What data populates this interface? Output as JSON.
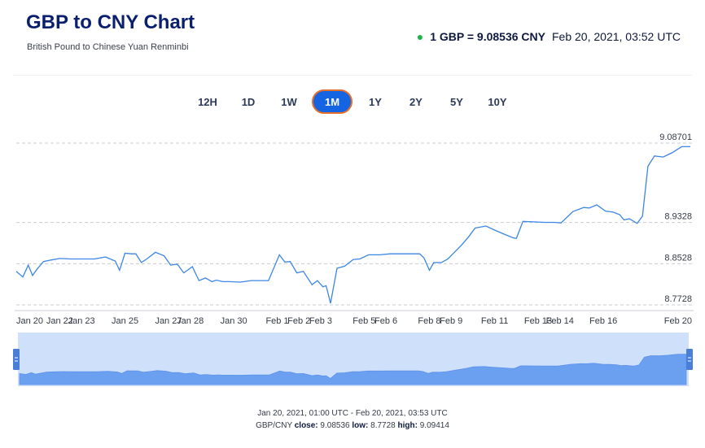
{
  "header": {
    "title": "GBP to CNY Chart",
    "subtitle": "British Pound to Chinese Yuan Renminbi",
    "rate_text": "1 GBP = 9.08536 CNY",
    "timestamp": "Feb 20, 2021, 03:52 UTC"
  },
  "ranges": [
    {
      "label": "12H",
      "active": false
    },
    {
      "label": "1D",
      "active": false
    },
    {
      "label": "1W",
      "active": false
    },
    {
      "label": "1M",
      "active": true
    },
    {
      "label": "1Y",
      "active": false
    },
    {
      "label": "2Y",
      "active": false
    },
    {
      "label": "5Y",
      "active": false
    },
    {
      "label": "10Y",
      "active": false
    }
  ],
  "colors": {
    "line": "#3b86e6",
    "navigator_fill": "#6b9ff0",
    "navigator_bg": "#cfe0fb",
    "active_range": "#1565e3",
    "active_border": "#e6702a",
    "live_dot": "#1fb34a"
  },
  "chart_data": {
    "type": "line",
    "y_ticks": [
      "9.08701",
      "8.9328",
      "8.8528",
      "8.7728"
    ],
    "y_tick_values": [
      9.08701,
      8.9328,
      8.8528,
      8.7728
    ],
    "ylim": [
      8.7728,
      9.08701
    ],
    "x_tick_labels": [
      "Jan 20",
      "Jan 22",
      "Jan 23",
      "Jan 25",
      "Jan 27",
      "Jan 28",
      "Jan 30",
      "Feb 1",
      "Feb 2",
      "Feb 3",
      "Feb 5",
      "Feb 6",
      "Feb 8",
      "Feb 9",
      "Feb 11",
      "Feb 13",
      "Feb 14",
      "Feb 16",
      "Feb 20"
    ],
    "x_tick_days": [
      0,
      2,
      3,
      5,
      7,
      8,
      10,
      12,
      13,
      14,
      16,
      17,
      19,
      20,
      22,
      24,
      25,
      27,
      31
    ],
    "series": [
      {
        "x": [
          0,
          0.3,
          0.55,
          0.75,
          0.95,
          1.25,
          1.6,
          2.0,
          2.5,
          3.0,
          3.6,
          4.1,
          4.55,
          4.75,
          5.0,
          5.3,
          5.5,
          5.75,
          6.0,
          6.4,
          6.8,
          7.1,
          7.4,
          7.7,
          8.1,
          8.4,
          8.7,
          9.0,
          9.2,
          9.5,
          9.8,
          10.3,
          10.8,
          11.2,
          11.6,
          12.1,
          12.35,
          12.6,
          12.9,
          13.2,
          13.6,
          13.85,
          14.1,
          14.25,
          14.45,
          14.75,
          15.1,
          15.5,
          15.8,
          16.2,
          16.7,
          17.2,
          17.7,
          18.2,
          18.55,
          18.75,
          19.0,
          19.2,
          19.55,
          19.85,
          20.15,
          20.5,
          20.8,
          21.1,
          21.6,
          22.0,
          22.45,
          22.85,
          23.0,
          23.3,
          23.8,
          24.3,
          24.75,
          25.05,
          25.6,
          26.1,
          26.35,
          26.7,
          27.1,
          27.45,
          27.75,
          27.95,
          28.2,
          28.55,
          28.8,
          29.05,
          29.35,
          29.75,
          30.15,
          30.6,
          31.0
        ],
        "y": [
          8.838,
          8.827,
          8.85,
          8.83,
          8.842,
          8.857,
          8.86,
          8.863,
          8.862,
          8.862,
          8.862,
          8.866,
          8.858,
          8.84,
          8.873,
          8.872,
          8.872,
          8.855,
          8.862,
          8.875,
          8.868,
          8.85,
          8.852,
          8.835,
          8.847,
          8.82,
          8.825,
          8.818,
          8.821,
          8.818,
          8.818,
          8.817,
          8.82,
          8.82,
          8.82,
          8.87,
          8.856,
          8.857,
          8.835,
          8.838,
          8.812,
          8.82,
          8.808,
          8.81,
          8.776,
          8.844,
          8.848,
          8.861,
          8.862,
          8.87,
          8.87,
          8.872,
          8.872,
          8.872,
          8.872,
          8.864,
          8.84,
          8.855,
          8.855,
          8.862,
          8.875,
          8.89,
          8.905,
          8.922,
          8.926,
          8.918,
          8.91,
          8.903,
          8.902,
          8.935,
          8.934,
          8.933,
          8.933,
          8.932,
          8.954,
          8.962,
          8.961,
          8.967,
          8.955,
          8.953,
          8.948,
          8.938,
          8.94,
          8.931,
          8.945,
          9.042,
          9.062,
          9.06,
          9.068,
          9.08,
          9.08
        ],
        "name": ""
      }
    ]
  },
  "footer": {
    "range_text": "Jan 20, 2021, 01:00 UTC - Feb 20, 2021, 03:53 UTC",
    "pair": "GBP/CNY",
    "close_label": "close:",
    "close_value": "9.08536",
    "low_label": "low:",
    "low_value": "8.7728",
    "high_label": "high:",
    "high_value": "9.09414"
  }
}
